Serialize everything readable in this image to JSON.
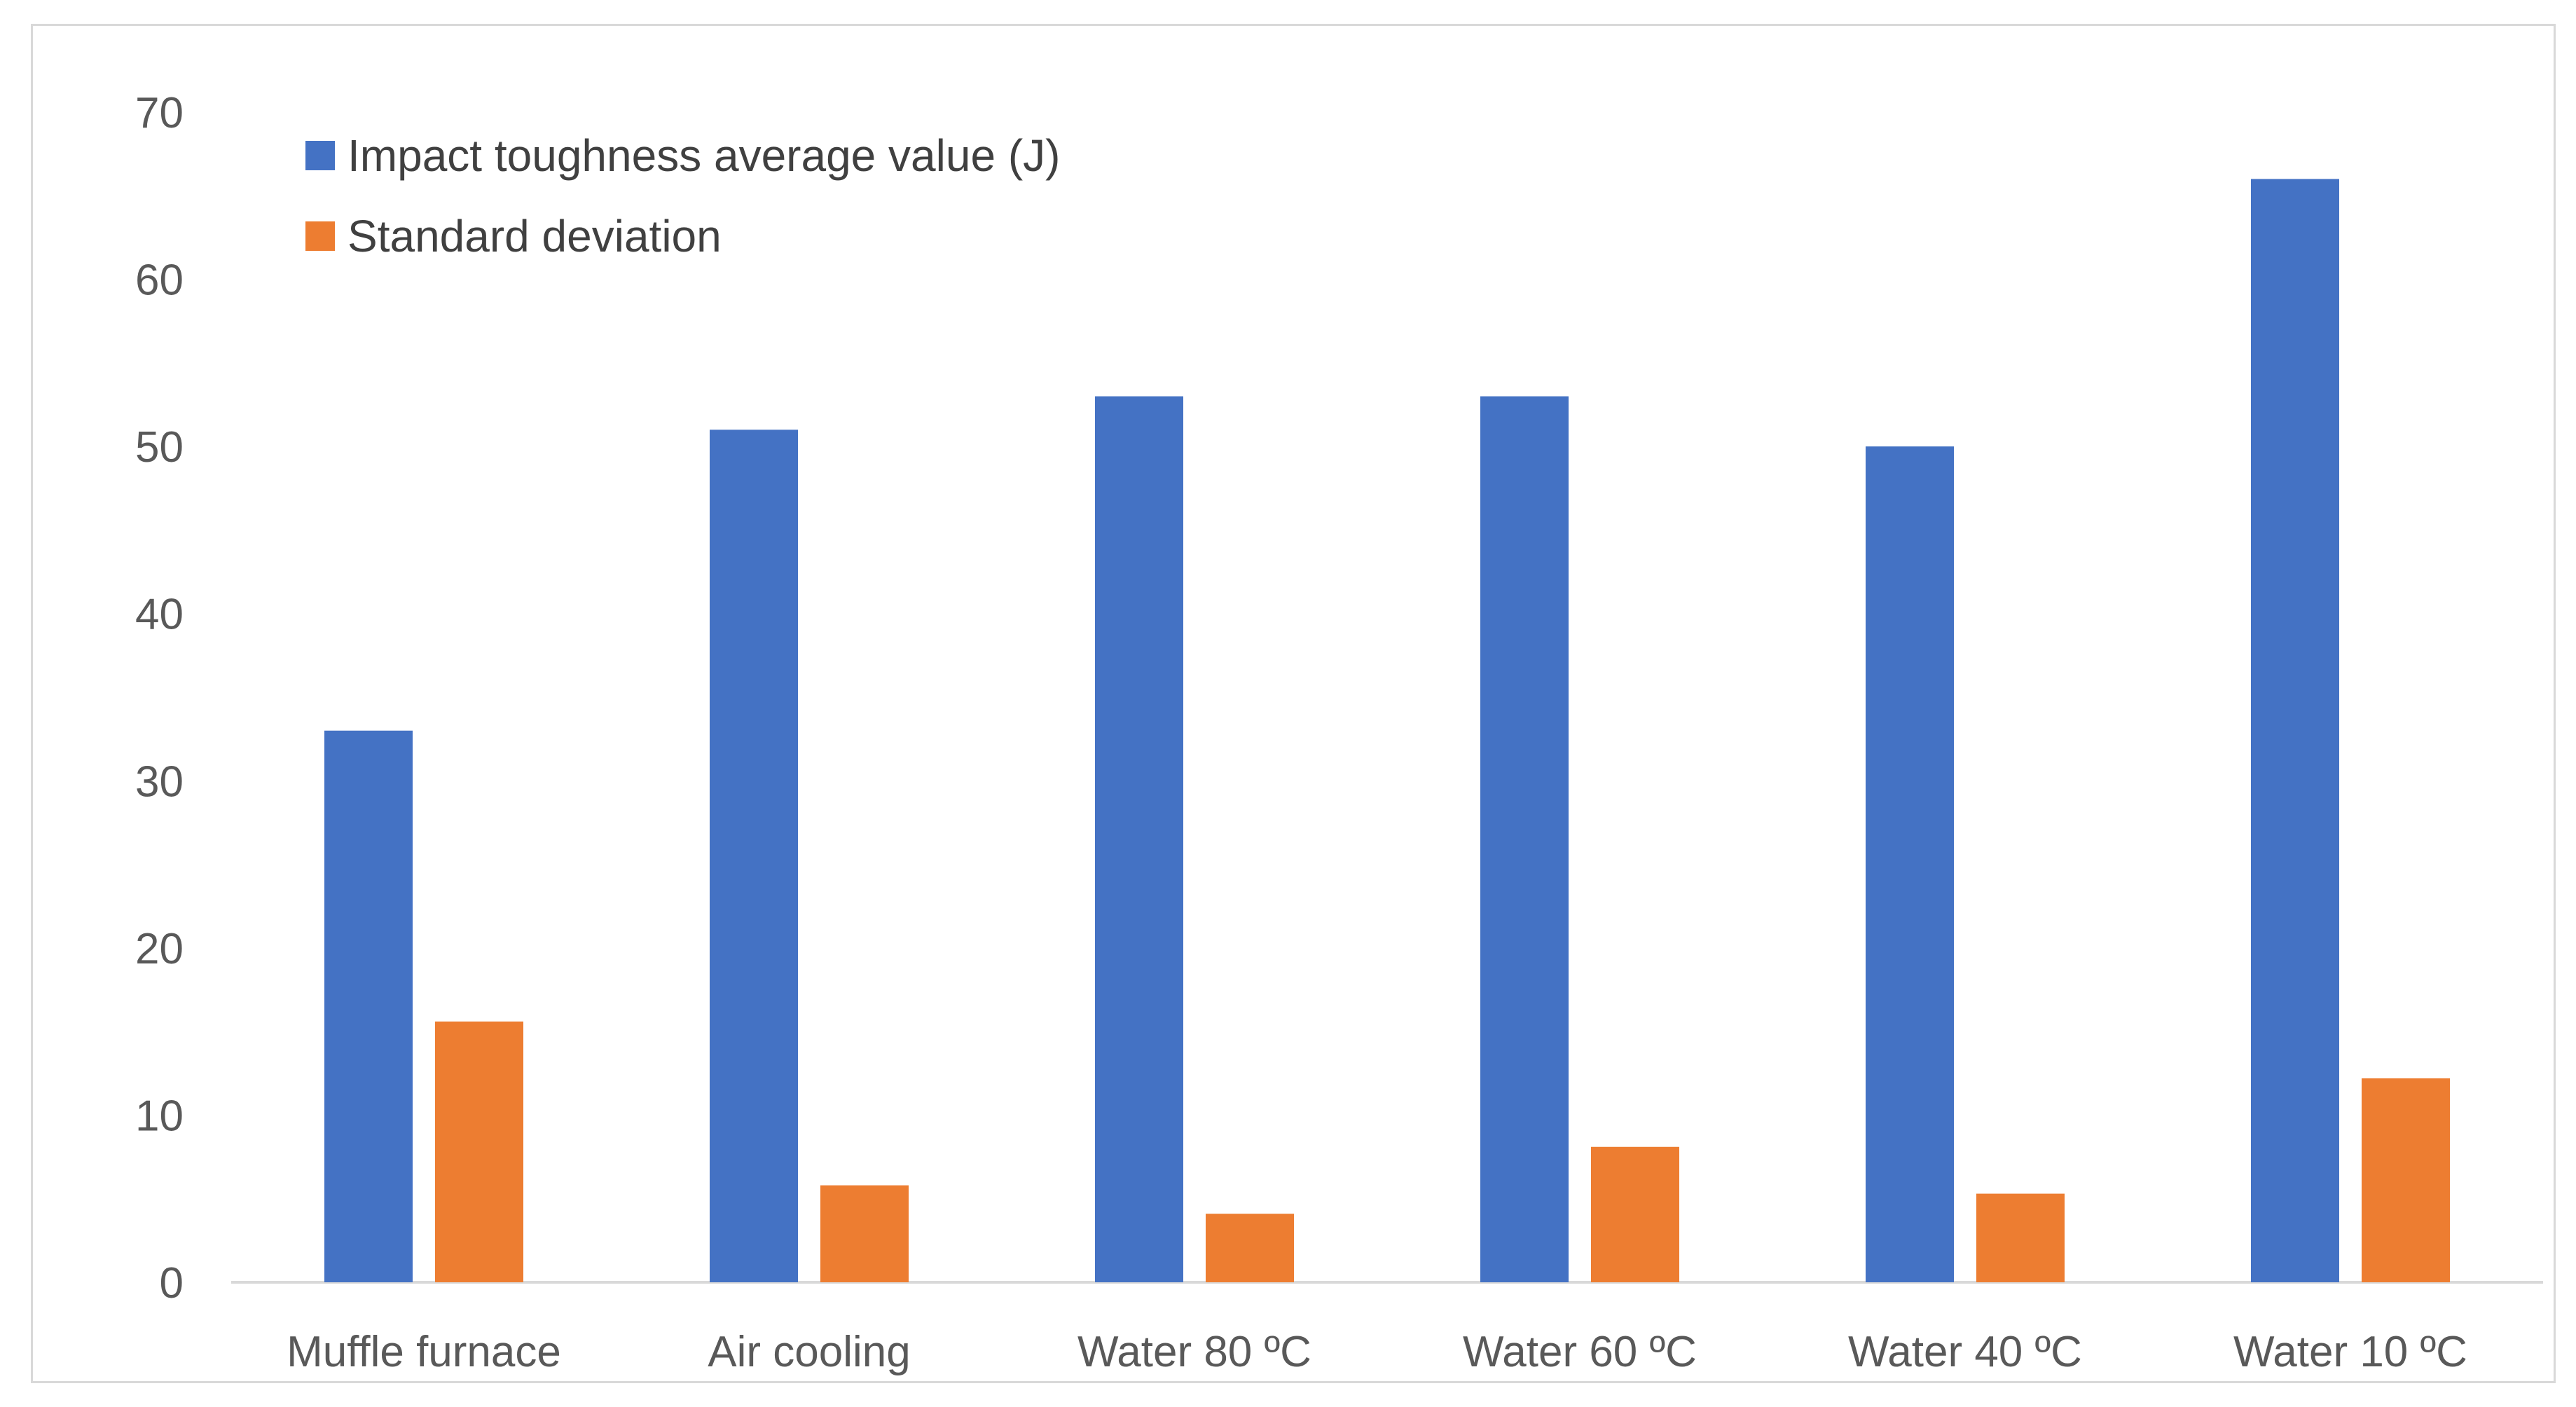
{
  "chart_data": {
    "type": "bar",
    "title": "",
    "xlabel": "",
    "ylabel": "",
    "categories": [
      "Muffle furnace",
      "Air cooling",
      "Water 80 ºC",
      "Water 60 ºC",
      "Water 40 ºC",
      "Water 10 ºC"
    ],
    "series": [
      {
        "name": "Impact toughness average value (J)",
        "color": "#4472c4",
        "values": [
          33,
          51,
          53,
          53,
          50,
          66
        ]
      },
      {
        "name": "Standard deviation",
        "color": "#ed7d31",
        "values": [
          15.6,
          5.8,
          4.1,
          8.1,
          5.3,
          12.2
        ]
      }
    ],
    "ylim": [
      0,
      70
    ],
    "yticks": [
      0,
      10,
      20,
      30,
      40,
      50,
      60,
      70
    ],
    "grid": false,
    "legend_position": "top-left"
  }
}
